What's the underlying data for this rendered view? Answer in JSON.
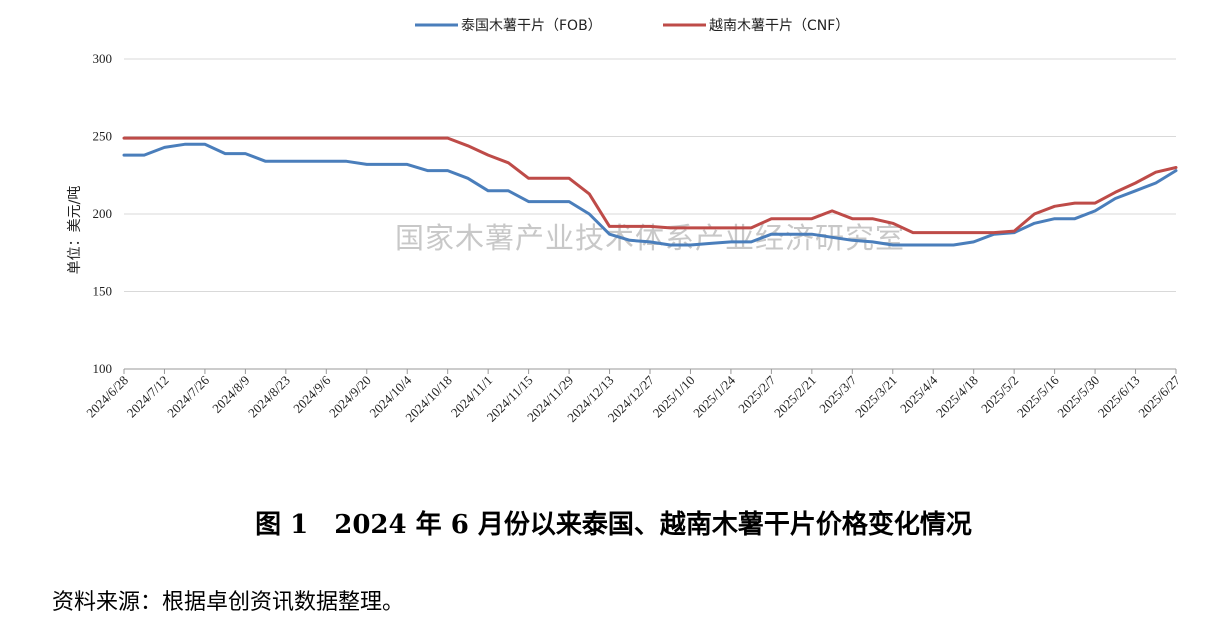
{
  "chart_data": {
    "type": "line",
    "ylabel": "单位：美元/吨",
    "ylim": [
      100,
      300
    ],
    "yticks": [
      "100",
      "150",
      "200",
      "250",
      "300"
    ],
    "watermark": "国家木薯产业技术体系产业经济研究室",
    "grid": "horizontal",
    "legend_position": "top-center",
    "x_labels": [
      "2024/6/28",
      "2024/7/12",
      "2024/7/26",
      "2024/8/9",
      "2024/8/23",
      "2024/9/6",
      "2024/9/20",
      "2024/10/4",
      "2024/10/18",
      "2024/11/1",
      "2024/11/15",
      "2024/11/29",
      "2024/12/13",
      "2024/12/27",
      "2025/1/10",
      "2025/1/24",
      "2025/2/7",
      "2025/2/21",
      "2025/3/7",
      "2025/3/21",
      "2025/4/4",
      "2025/4/18",
      "2025/5/2",
      "2025/5/16",
      "2025/5/30",
      "2025/6/13",
      "2025/6/27"
    ],
    "x": [
      "2024/6/28",
      "2024/7/5",
      "2024/7/12",
      "2024/7/19",
      "2024/7/26",
      "2024/8/2",
      "2024/8/9",
      "2024/8/16",
      "2024/8/23",
      "2024/8/30",
      "2024/9/6",
      "2024/9/13",
      "2024/9/20",
      "2024/9/27",
      "2024/10/4",
      "2024/10/11",
      "2024/10/18",
      "2024/10/25",
      "2024/11/1",
      "2024/11/8",
      "2024/11/15",
      "2024/11/22",
      "2024/11/29",
      "2024/12/6",
      "2024/12/13",
      "2024/12/20",
      "2024/12/27",
      "2025/1/3",
      "2025/1/10",
      "2025/1/17",
      "2025/1/24",
      "2025/1/31",
      "2025/2/7",
      "2025/2/14",
      "2025/2/21",
      "2025/2/28",
      "2025/3/7",
      "2025/3/14",
      "2025/3/21",
      "2025/3/28",
      "2025/4/4",
      "2025/4/11",
      "2025/4/18",
      "2025/4/25",
      "2025/5/2",
      "2025/5/9",
      "2025/5/16",
      "2025/5/23",
      "2025/5/30",
      "2025/6/6",
      "2025/6/13",
      "2025/6/20",
      "2025/6/27"
    ],
    "series": [
      {
        "name": "泰国木薯干片（FOB）",
        "color": "#4a7ebb",
        "values": [
          238,
          238,
          243,
          245,
          245,
          239,
          239,
          234,
          234,
          234,
          234,
          234,
          232,
          232,
          232,
          228,
          228,
          223,
          215,
          215,
          208,
          208,
          208,
          200,
          187,
          183,
          182,
          180,
          180,
          181,
          182,
          182,
          187,
          187,
          187,
          185,
          183,
          182,
          180,
          180,
          180,
          180,
          182,
          187,
          188,
          194,
          197,
          197,
          202,
          210,
          215,
          220,
          228
        ]
      },
      {
        "name": "越南木薯干片（CNF）",
        "color": "#be4b48",
        "values": [
          249,
          249,
          249,
          249,
          249,
          249,
          249,
          249,
          249,
          249,
          249,
          249,
          249,
          249,
          249,
          249,
          249,
          244,
          238,
          233,
          223,
          223,
          223,
          213,
          192,
          192,
          192,
          191,
          191,
          191,
          191,
          191,
          197,
          197,
          197,
          202,
          197,
          197,
          194,
          188,
          188,
          188,
          188,
          188,
          189,
          200,
          205,
          207,
          207,
          214,
          220,
          227,
          230
        ]
      }
    ]
  },
  "caption": "图 1　2024 年 6 月份以来泰国、越南木薯干片价格变化情况",
  "source": "资料来源：根据卓创资讯数据整理。"
}
